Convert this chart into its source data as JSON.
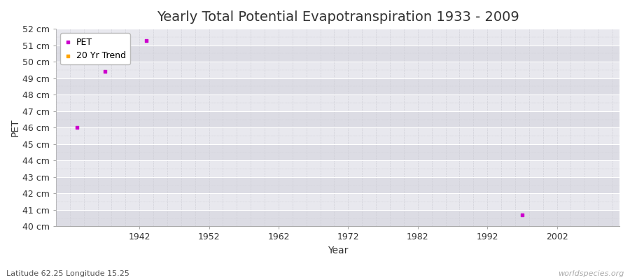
{
  "title": "Yearly Total Potential Evapotranspiration 1933 - 2009",
  "xlabel": "Year",
  "ylabel": "PET",
  "subtitle": "Latitude 62.25 Longitude 15.25",
  "watermark": "worldspecies.org",
  "pet_points": [
    [
      1933,
      46.0
    ],
    [
      1937,
      49.4
    ],
    [
      1943,
      51.3
    ],
    [
      1997,
      40.7
    ]
  ],
  "pet_color": "#cc00cc",
  "trend_color": "#ffa500",
  "ylim": [
    40,
    52
  ],
  "ytick_step": 1,
  "xlim": [
    1930,
    2011
  ],
  "xticks": [
    1942,
    1952,
    1962,
    1972,
    1982,
    1992,
    2002
  ],
  "fig_bg_color": "#ffffff",
  "plot_bg_color": "#e8e8ee",
  "grid_major_color": "#ffffff",
  "grid_minor_color": "#d0d0d8",
  "grid_linestyle": "--",
  "title_fontsize": 14,
  "axis_label_fontsize": 10,
  "tick_fontsize": 9,
  "legend_fontsize": 9
}
